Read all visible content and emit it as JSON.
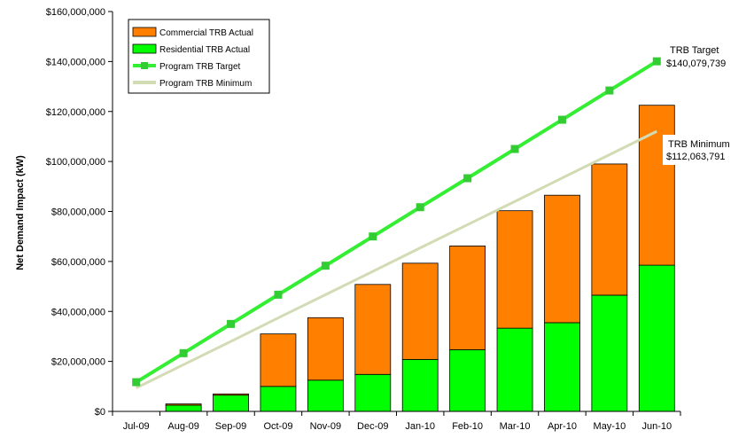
{
  "chart_data": {
    "type": "bar",
    "stacked": true,
    "title": "",
    "xlabel": "",
    "ylabel": "Net Demand Impact (kW)",
    "ylim": [
      0,
      160000000
    ],
    "yticks": [
      "$0",
      "$20,000,000",
      "$40,000,000",
      "$60,000,000",
      "$80,000,000",
      "$100,000,000",
      "$120,000,000",
      "$140,000,000",
      "$160,000,000"
    ],
    "categories": [
      "Jul-09",
      "Aug-09",
      "Sep-09",
      "Oct-09",
      "Nov-09",
      "Dec-09",
      "Jan-10",
      "Feb-10",
      "Mar-10",
      "Apr-10",
      "May-10",
      "Jun-10"
    ],
    "legend_position": "top-left",
    "series": [
      {
        "name": "Commercial TRB Actual",
        "kind": "bar",
        "color": "#ff8000",
        "values": [
          0,
          500000,
          500000,
          21000000,
          25000000,
          36000000,
          38500000,
          41500000,
          47000000,
          51000000,
          52500000,
          64000000
        ]
      },
      {
        "name": "Residential TRB Actual",
        "kind": "bar",
        "color": "#00ff00",
        "values": [
          0,
          2500000,
          6500000,
          10000000,
          12500000,
          14800000,
          20800000,
          24700000,
          33300000,
          35500000,
          46500000,
          58500000
        ]
      },
      {
        "name": "Program TRB Target",
        "kind": "line",
        "color": "#33ee33",
        "marker": "square",
        "values": [
          11700000,
          23300000,
          35000000,
          46700000,
          58300000,
          70000000,
          81700000,
          93300000,
          105000000,
          116700000,
          128400000,
          140079739
        ]
      },
      {
        "name": "Program TRB Minimum",
        "kind": "line",
        "color": "#d2dcb4",
        "values": [
          9400000,
          18700000,
          28000000,
          37400000,
          46700000,
          56000000,
          65400000,
          74700000,
          84000000,
          93400000,
          102700000,
          112063791
        ]
      }
    ],
    "annotations": [
      {
        "label": "TRB Target",
        "value": "$140,079,739"
      },
      {
        "label": "TRB Minimum",
        "value": "$112,063,791"
      }
    ]
  }
}
